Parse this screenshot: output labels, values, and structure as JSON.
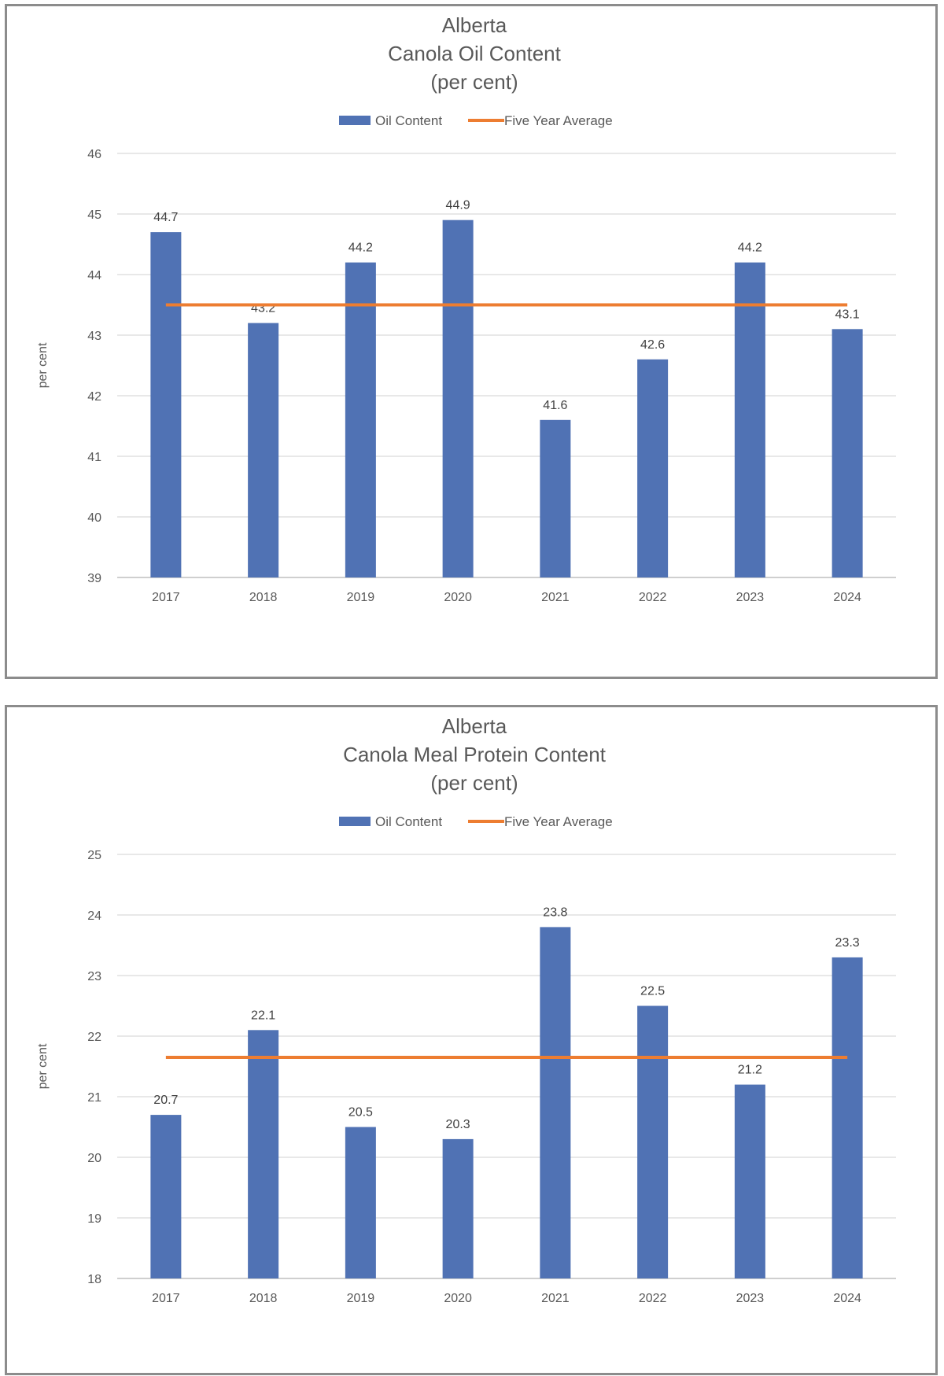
{
  "colors": {
    "bar": "#5072b4",
    "line": "#ed7d31",
    "grid": "#d9d9d9",
    "text": "#595959"
  },
  "chart_data": [
    {
      "type": "bar",
      "title": "Alberta",
      "subtitle": "Canola Oil Content",
      "unit_line": "(per cent)",
      "ylabel": "per cent",
      "xlabel": "",
      "categories": [
        "2017",
        "2018",
        "2019",
        "2020",
        "2021",
        "2022",
        "2023",
        "2024"
      ],
      "series": [
        {
          "name": "Oil Content",
          "type": "bar",
          "color": "#5072b4",
          "values": [
            44.7,
            43.2,
            44.2,
            44.9,
            41.6,
            42.6,
            44.2,
            43.1
          ]
        },
        {
          "name": "Five Year Average",
          "type": "line",
          "color": "#ed7d31",
          "values": [
            43.5,
            43.5,
            43.5,
            43.5,
            43.5,
            43.5,
            43.5,
            43.5
          ]
        }
      ],
      "data_labels": [
        "44.7",
        "43.2",
        "44.2",
        "44.9",
        "41.6",
        "42.6",
        "44.2",
        "43.1"
      ],
      "ylim": [
        39,
        46
      ],
      "yticks": [
        "39",
        "40",
        "41",
        "42",
        "43",
        "44",
        "45",
        "46"
      ],
      "grid": true,
      "legend_position": "top"
    },
    {
      "type": "bar",
      "title": "Alberta",
      "subtitle": "Canola Meal Protein Content",
      "unit_line": "(per cent)",
      "ylabel": "per cent",
      "xlabel": "",
      "categories": [
        "2017",
        "2018",
        "2019",
        "2020",
        "2021",
        "2022",
        "2023",
        "2024"
      ],
      "series": [
        {
          "name": "Oil Content",
          "type": "bar",
          "color": "#5072b4",
          "values": [
            20.7,
            22.1,
            20.5,
            20.3,
            23.8,
            22.5,
            21.2,
            23.3
          ]
        },
        {
          "name": "Five Year Average",
          "type": "line",
          "color": "#ed7d31",
          "values": [
            21.65,
            21.65,
            21.65,
            21.65,
            21.65,
            21.65,
            21.65,
            21.65
          ]
        }
      ],
      "data_labels": [
        "20.7",
        "22.1",
        "20.5",
        "20.3",
        "23.8",
        "22.5",
        "21.2",
        "23.3"
      ],
      "ylim": [
        18,
        25
      ],
      "yticks": [
        "18",
        "19",
        "20",
        "21",
        "22",
        "23",
        "24",
        "25"
      ],
      "grid": true,
      "legend_position": "top"
    }
  ]
}
